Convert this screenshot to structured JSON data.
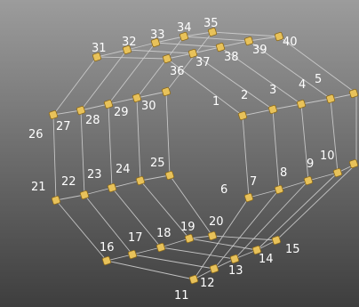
{
  "colors": {
    "background_top": "#9c9c9c",
    "background_bottom": "#3e3e3e",
    "edge": "#cfcfcf",
    "vertex": "#e8c25a",
    "label": "#ffffff"
  },
  "vertices": [
    {
      "id": 1,
      "label": "1"
    },
    {
      "id": 2,
      "label": "2"
    },
    {
      "id": 3,
      "label": "3"
    },
    {
      "id": 4,
      "label": "4"
    },
    {
      "id": 5,
      "label": "5"
    },
    {
      "id": 6,
      "label": "6"
    },
    {
      "id": 7,
      "label": "7"
    },
    {
      "id": 8,
      "label": "8"
    },
    {
      "id": 9,
      "label": "9"
    },
    {
      "id": 10,
      "label": "10"
    },
    {
      "id": 11,
      "label": "11"
    },
    {
      "id": 12,
      "label": "12"
    },
    {
      "id": 13,
      "label": "13"
    },
    {
      "id": 14,
      "label": "14"
    },
    {
      "id": 15,
      "label": "15"
    },
    {
      "id": 16,
      "label": "16"
    },
    {
      "id": 17,
      "label": "17"
    },
    {
      "id": 18,
      "label": "18"
    },
    {
      "id": 19,
      "label": "19"
    },
    {
      "id": 20,
      "label": "20"
    },
    {
      "id": 21,
      "label": "21"
    },
    {
      "id": 22,
      "label": "22"
    },
    {
      "id": 23,
      "label": "23"
    },
    {
      "id": 24,
      "label": "24"
    },
    {
      "id": 25,
      "label": "25"
    },
    {
      "id": 26,
      "label": "26"
    },
    {
      "id": 27,
      "label": "27"
    },
    {
      "id": 28,
      "label": "28"
    },
    {
      "id": 29,
      "label": "29"
    },
    {
      "id": 30,
      "label": "30"
    },
    {
      "id": 31,
      "label": "31"
    },
    {
      "id": 32,
      "label": "32"
    },
    {
      "id": 33,
      "label": "33"
    },
    {
      "id": 34,
      "label": "34"
    },
    {
      "id": 35,
      "label": "35"
    },
    {
      "id": 36,
      "label": "36"
    },
    {
      "id": 37,
      "label": "37"
    },
    {
      "id": 38,
      "label": "38"
    },
    {
      "id": 39,
      "label": "39"
    },
    {
      "id": 40,
      "label": "40"
    }
  ]
}
